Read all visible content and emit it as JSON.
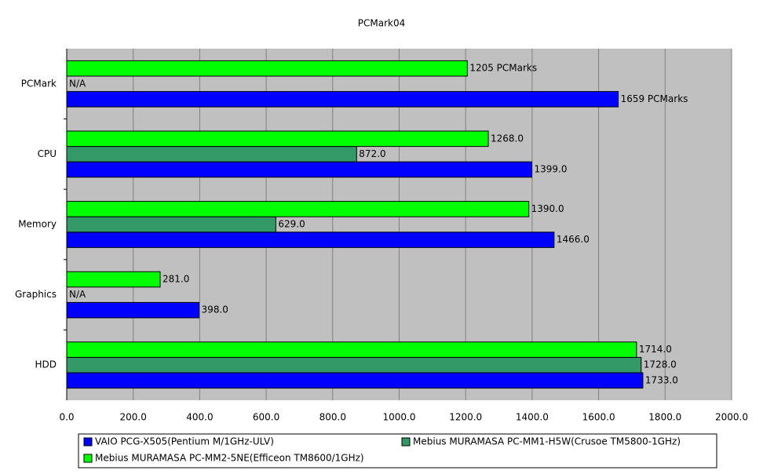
{
  "chart_data": {
    "type": "hbar",
    "title": "PCMark04",
    "categories": [
      "PCMark",
      "CPU",
      "Memory",
      "Graphics",
      "HDD"
    ],
    "series": [
      {
        "name": "VAIO PCG-X505(Pentium M/1GHz-ULV)",
        "color": "#0000ff",
        "values": [
          1659,
          1399,
          1466,
          398,
          1733
        ],
        "value_labels": [
          "1659 PCMarks",
          "1399.0",
          "1466.0",
          "398.0",
          "1733.0"
        ]
      },
      {
        "name": "Mebius MURAMASA PC-MM1-H5W(Crusoe TM5800-1GHz)",
        "color": "#339966",
        "values": [
          null,
          872,
          629,
          null,
          1728
        ],
        "value_labels": [
          "N/A",
          "872.0",
          "629.0",
          "N/A",
          "1728.0"
        ]
      },
      {
        "name": "Mebius MURAMASA PC-MM2-5NE(Efficeon TM8600/1GHz)",
        "color": "#00ff00",
        "values": [
          1205,
          1268,
          1390,
          281,
          1714
        ],
        "value_labels": [
          "1205 PCMarks",
          "1268.0",
          "1390.0",
          "281.0",
          "1714.0"
        ]
      }
    ],
    "xlim": [
      0,
      2000
    ],
    "xticks": [
      {
        "value": 0,
        "label": "0.0"
      },
      {
        "value": 200,
        "label": "200.0"
      },
      {
        "value": 400,
        "label": "400.0"
      },
      {
        "value": 600,
        "label": "600.0"
      },
      {
        "value": 800,
        "label": "800.0"
      },
      {
        "value": 1000,
        "label": "1000.0"
      },
      {
        "value": 1200,
        "label": "1200.0"
      },
      {
        "value": 1400,
        "label": "1400.0"
      },
      {
        "value": 1600,
        "label": "1600.0"
      },
      {
        "value": 1800,
        "label": "1800.0"
      },
      {
        "value": 2000,
        "label": "2000.0"
      }
    ],
    "grid": true
  }
}
